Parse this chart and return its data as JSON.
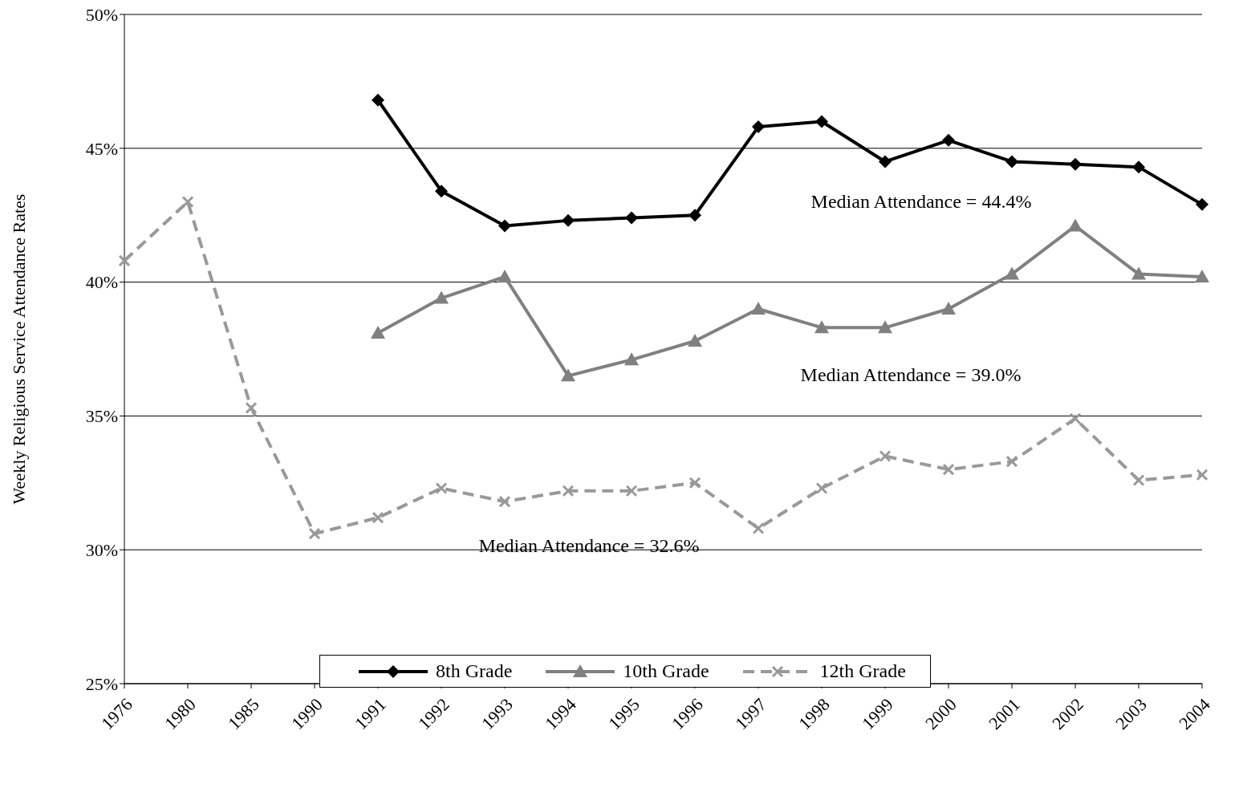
{
  "chart_data": {
    "type": "line",
    "ylabel": "Weekly Religious Service Attendance Rates",
    "categories": [
      "1976",
      "1980",
      "1985",
      "1990",
      "1991",
      "1992",
      "1993",
      "1994",
      "1995",
      "1996",
      "1997",
      "1998",
      "1999",
      "2000",
      "2001",
      "2002",
      "2003",
      "2004"
    ],
    "series": [
      {
        "name": "8th Grade",
        "color": "#000000",
        "marker": "diamond",
        "line_style": "solid",
        "values": [
          null,
          null,
          null,
          null,
          46.8,
          43.4,
          42.1,
          42.3,
          42.4,
          42.5,
          45.8,
          46.0,
          44.5,
          45.3,
          44.5,
          44.4,
          44.3,
          42.9
        ]
      },
      {
        "name": "10th Grade",
        "color": "#808080",
        "marker": "triangle",
        "line_style": "solid",
        "values": [
          null,
          null,
          null,
          null,
          38.1,
          39.4,
          40.2,
          36.5,
          37.1,
          37.8,
          39.0,
          38.3,
          38.3,
          39.0,
          40.3,
          42.1,
          40.3,
          40.2
        ]
      },
      {
        "name": "12th Grade",
        "color": "#999999",
        "marker": "cross",
        "line_style": "dashed",
        "values": [
          40.8,
          43.0,
          35.3,
          30.6,
          31.2,
          32.3,
          31.8,
          32.2,
          32.2,
          32.5,
          30.8,
          32.3,
          33.5,
          33.0,
          33.3,
          34.9,
          32.6,
          32.8
        ]
      }
    ],
    "ylim": [
      25,
      50
    ],
    "yticks": [
      {
        "value": 25,
        "label": "25%"
      },
      {
        "value": 30,
        "label": "30%"
      },
      {
        "value": 35,
        "label": "35%"
      },
      {
        "value": 40,
        "label": "40%"
      },
      {
        "value": 45,
        "label": "45%"
      },
      {
        "value": 50,
        "label": "50%"
      }
    ],
    "grid": "y",
    "legend": "bottom",
    "annotations": [
      "Median Attendance = 44.4%",
      "Median Attendance = 39.0%",
      "Median Attendance = 32.6%"
    ]
  }
}
